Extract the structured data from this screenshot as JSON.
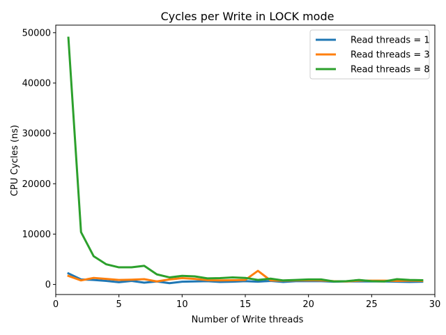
{
  "chart_data": {
    "type": "line",
    "title": "Cycles per Write in LOCK mode",
    "xlabel": "Number of Write threads",
    "ylabel": "CPU Cycles (ns)",
    "xlim": [
      0,
      30
    ],
    "ylim": [
      -2000,
      51500
    ],
    "xticks": [
      0,
      5,
      10,
      15,
      20,
      25,
      30
    ],
    "yticks": [
      0,
      10000,
      20000,
      30000,
      40000,
      50000
    ],
    "legend_position": "top-right",
    "grid": false,
    "x": [
      1,
      2,
      3,
      4,
      5,
      6,
      7,
      8,
      9,
      10,
      11,
      12,
      13,
      14,
      15,
      16,
      17,
      18,
      19,
      20,
      21,
      22,
      23,
      24,
      25,
      26,
      27,
      28,
      29
    ],
    "series": [
      {
        "name": "Read threads = 1",
        "color": "#1f77b4",
        "values": [
          2200,
          1000,
          900,
          700,
          450,
          700,
          350,
          600,
          250,
          550,
          600,
          650,
          500,
          550,
          650,
          550,
          700,
          500,
          650,
          650,
          650,
          550,
          600,
          600,
          600,
          600,
          550,
          500,
          550
        ]
      },
      {
        "name": "Read threads = 3",
        "color": "#ff7f0e",
        "values": [
          1700,
          800,
          1300,
          1100,
          900,
          950,
          1050,
          600,
          1000,
          1250,
          1100,
          850,
          800,
          850,
          900,
          2700,
          800,
          750,
          800,
          850,
          800,
          650,
          600,
          750,
          750,
          750,
          700,
          750,
          700
        ]
      },
      {
        "name": "Read threads = 8",
        "color": "#2ca02c",
        "values": [
          49000,
          10400,
          5600,
          4000,
          3400,
          3400,
          3700,
          2000,
          1400,
          1700,
          1600,
          1200,
          1250,
          1400,
          1300,
          900,
          1150,
          800,
          900,
          1000,
          1000,
          600,
          650,
          900,
          650,
          600,
          1050,
          900,
          850
        ]
      }
    ]
  }
}
